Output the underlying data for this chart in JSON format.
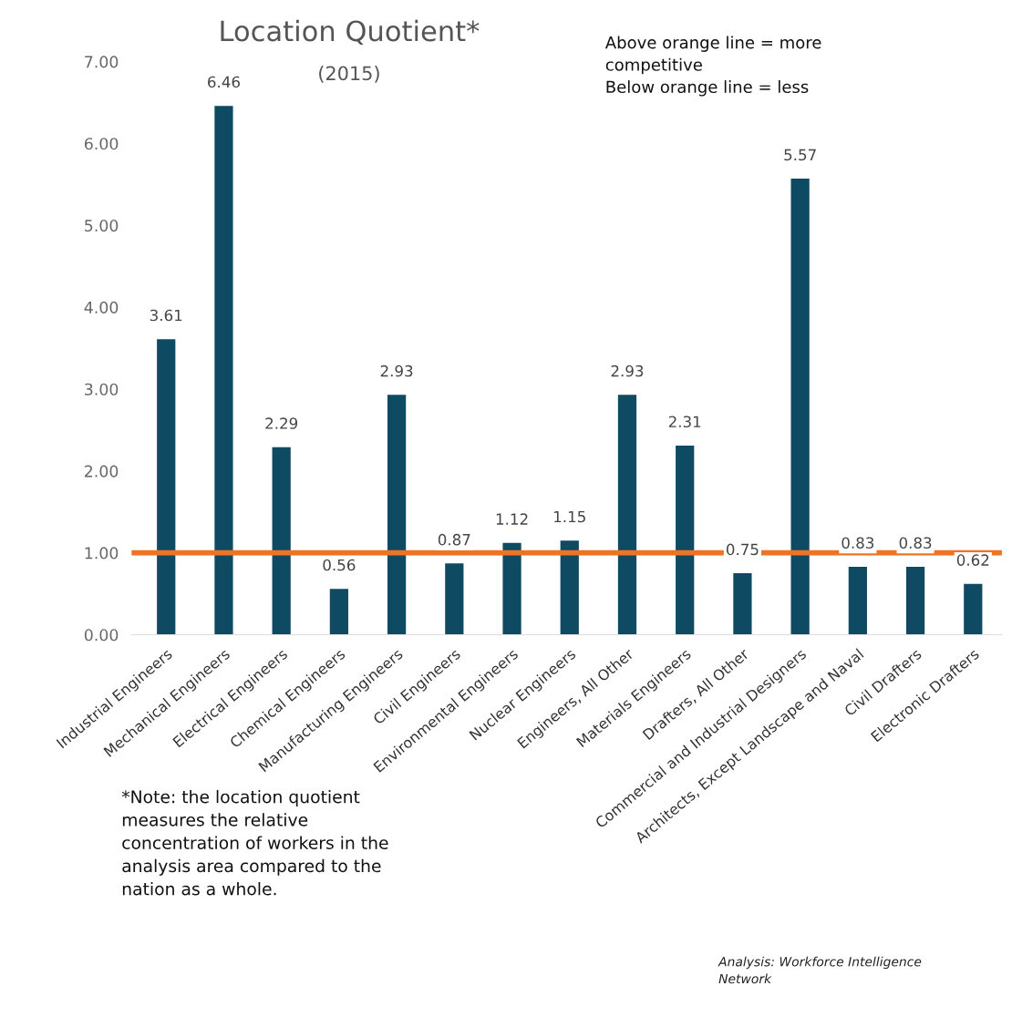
{
  "chart_data": {
    "type": "bar",
    "title": "Location Quotient*",
    "subtitle": "(2015)",
    "categories": [
      "Industrial Engineers",
      "Mechanical Engineers",
      "Electrical Engineers",
      "Chemical Engineers",
      "Manufacturing Engineers",
      "Civil Engineers",
      "Environmental Engineers",
      "Nuclear Engineers",
      "Engineers, All Other",
      "Materials Engineers",
      "Drafters, All Other",
      "Commercial and Industrial Designers",
      "Architects, Except Landscape and Naval",
      "Civil Drafters",
      "Electronic Drafters"
    ],
    "values": [
      3.61,
      6.46,
      2.29,
      0.56,
      2.93,
      0.87,
      1.12,
      1.15,
      2.93,
      2.31,
      0.75,
      5.57,
      0.83,
      0.83,
      0.62
    ],
    "color": "#0f4a63",
    "data_labels": true,
    "ylim": [
      0,
      7
    ],
    "yticks": [
      {
        "value": 0,
        "label": "0.00"
      },
      {
        "value": 1,
        "label": "1.00"
      },
      {
        "value": 2,
        "label": "2.00"
      },
      {
        "value": 3,
        "label": "3.00"
      },
      {
        "value": 4,
        "label": "4.00"
      },
      {
        "value": 5,
        "label": "5.00"
      },
      {
        "value": 6,
        "label": "6.00"
      },
      {
        "value": 7,
        "label": "7.00"
      }
    ],
    "ref_lines": [
      {
        "axis": "y",
        "value": 1,
        "label": null,
        "color": "#f07323"
      }
    ],
    "annotations": [
      "Above orange line = more\ncompetitive\nBelow orange line = less",
      "*Note: the location quotient\nmeasures the relative\nconcentration of workers in the\nanalysis area compared to the\nnation as a whole.",
      "Analysis: Workforce Intelligence\nNetwork"
    ],
    "grid": false,
    "legend": false
  }
}
